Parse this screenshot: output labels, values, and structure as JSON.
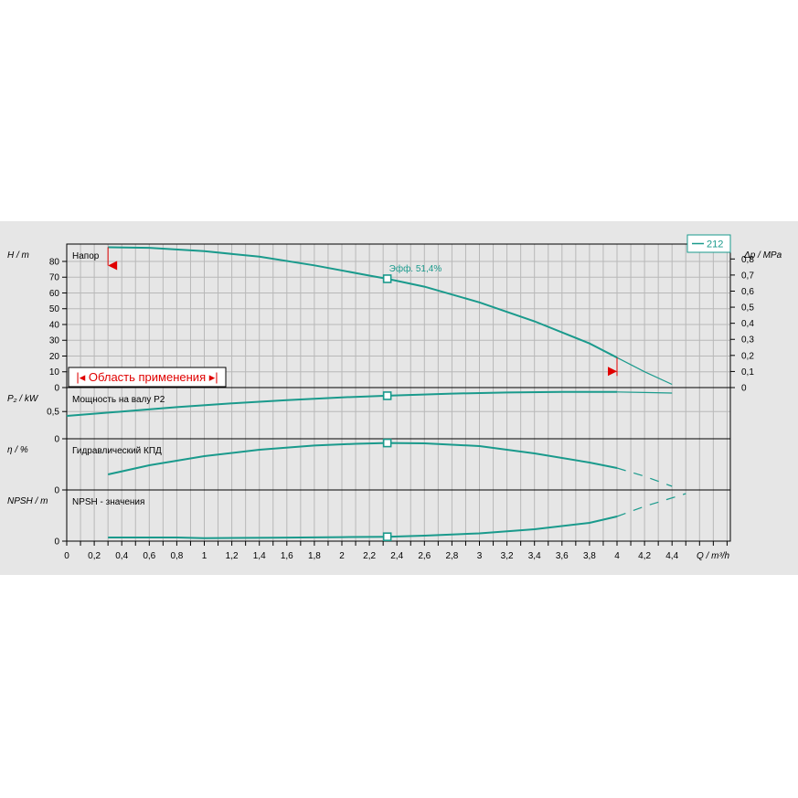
{
  "chart_data": {
    "type": "line",
    "x_axis": {
      "label": "Q / m³/h",
      "range": [
        0,
        4.8
      ],
      "tick_values": [
        0,
        0.2,
        0.4,
        0.6,
        0.8,
        1,
        1.2,
        1.4,
        1.6,
        1.8,
        2,
        2.2,
        2.4,
        2.6,
        2.8,
        3,
        3.2,
        3.4,
        3.6,
        3.8,
        4,
        4.2,
        4.4
      ],
      "tick_labels": [
        "0",
        "0,2",
        "0,4",
        "0,6",
        "0,8",
        "1",
        "1,2",
        "1,4",
        "1,6",
        "1,8",
        "2",
        "2,2",
        "2,4",
        "2,6",
        "2,8",
        "3",
        "3,2",
        "3,4",
        "3,6",
        "3,8",
        "4",
        "4,2",
        "4,4"
      ]
    },
    "legend": {
      "position": "top-right",
      "entries": [
        "212"
      ],
      "color": "#1a9a8c"
    },
    "curve_color": "#1a9a8c",
    "duty_point": {
      "q": 2.33
    },
    "panels": [
      {
        "id": "head",
        "title": "Напор",
        "y_axis_label": "H / m",
        "y_range": [
          0,
          91
        ],
        "y_ticks": [
          0,
          10,
          20,
          30,
          40,
          50,
          60,
          70,
          80
        ],
        "y_tick_labels": [
          "0",
          "10",
          "20",
          "30",
          "40",
          "50",
          "60",
          "70",
          "80"
        ],
        "secondary_axis": {
          "label": "Δp / MPa",
          "ticks": [
            0,
            0.1,
            0.2,
            0.3,
            0.4,
            0.5,
            0.6,
            0.7,
            0.8
          ],
          "tick_labels": [
            "0",
            "0,1",
            "0,2",
            "0,3",
            "0,4",
            "0,5",
            "0,6",
            "0,7",
            "0,8"
          ]
        },
        "series": [
          {
            "name": "212",
            "style": "solid",
            "x": [
              0.3,
              0.6,
              1.0,
              1.4,
              1.8,
              2.2,
              2.33,
              2.6,
              3.0,
              3.4,
              3.8,
              4.0
            ],
            "y": [
              89,
              88.6,
              86.5,
              83,
              77.5,
              71,
              69,
              64,
              54,
              42,
              28,
              19
            ]
          },
          {
            "name": "212",
            "style": "thin",
            "x": [
              4.0,
              4.2,
              4.4
            ],
            "y": [
              19,
              10,
              2
            ]
          }
        ],
        "duty_point_value": 69,
        "annotations": [
          {
            "text": "Эфф.  51,4%",
            "at_q": 2.33,
            "color": "#1a9a8c"
          },
          {
            "text": "Область применения",
            "type": "range-box",
            "color": "#e00000"
          }
        ],
        "operating_range": {
          "q_min": 0.3,
          "q_max": 4.0,
          "marker_color": "#e00000"
        }
      },
      {
        "id": "power",
        "title": "Мощность на валу P2",
        "y_axis_label": "P₂ / kW",
        "y_range": [
          0,
          0.94
        ],
        "y_ticks": [
          0,
          0.5
        ],
        "y_tick_labels": [
          "0",
          "0,5"
        ],
        "series": [
          {
            "name": "212",
            "style": "solid",
            "x": [
              0,
              0.4,
              0.8,
              1.2,
              1.6,
              2.0,
              2.33,
              2.8,
              3.2,
              3.6,
              4.0
            ],
            "y": [
              0.42,
              0.5,
              0.58,
              0.65,
              0.71,
              0.76,
              0.79,
              0.83,
              0.85,
              0.86,
              0.86
            ]
          },
          {
            "name": "212",
            "style": "thin",
            "x": [
              4.0,
              4.2,
              4.4
            ],
            "y": [
              0.86,
              0.85,
              0.84
            ]
          }
        ],
        "duty_point_value": 0.79
      },
      {
        "id": "efficiency",
        "title": "Гидравлический КПД",
        "y_axis_label": "η / %",
        "y_range": [
          0,
          56
        ],
        "y_ticks": [
          0
        ],
        "y_tick_labels": [
          "0"
        ],
        "series": [
          {
            "name": "212",
            "style": "solid",
            "x": [
              0.3,
              0.6,
              1.0,
              1.4,
              1.8,
              2.1,
              2.33,
              2.6,
              3.0,
              3.4,
              3.8,
              4.0
            ],
            "y": [
              17,
              27,
              37,
              44,
              48.6,
              50.5,
              51.4,
              51,
              48,
              40,
              30,
              24
            ]
          },
          {
            "name": "212",
            "style": "dashed",
            "x": [
              4.0,
              4.2,
              4.4
            ],
            "y": [
              24,
              15,
              4
            ]
          }
        ],
        "duty_point_value": 51.4
      },
      {
        "id": "npsh",
        "title": "NPSH - значения",
        "y_axis_label": "NPSH / m",
        "y_ticks": [
          0
        ],
        "y_tick_labels": [
          "0"
        ],
        "y_range": [
          0,
          56
        ],
        "series": [
          {
            "name": "212",
            "style": "solid",
            "x": [
              0.3,
              0.8,
              1.0,
              1.5,
              2.0,
              2.33,
              2.6,
              3.0,
              3.4,
              3.8,
              4.0
            ],
            "y": [
              4,
              4,
              3.3,
              3.8,
              4.4,
              4.8,
              6,
              8.5,
              13,
              20,
              27
            ]
          },
          {
            "name": "212",
            "style": "dashed",
            "x": [
              4.0,
              4.2,
              4.5
            ],
            "y": [
              27,
              38,
              52
            ]
          }
        ],
        "duty_point_value": 4.8
      }
    ]
  }
}
